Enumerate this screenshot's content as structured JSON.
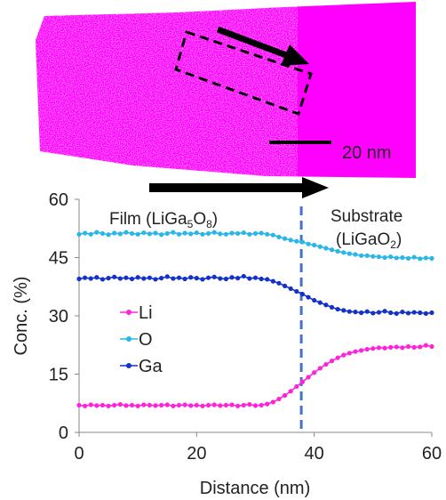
{
  "colors": {
    "atom_map": "#ff00ff",
    "li": "#ff22dd",
    "o": "#29b6e8",
    "ga": "#1432c8",
    "interface": "#4472c4",
    "arrow": "#000000"
  },
  "scale_bar": {
    "label": "20 nm"
  },
  "annotations": {
    "film_prefix": "Film (LiGa",
    "film_sub1": "5",
    "film_mid": "O",
    "film_sub2": "8",
    "film_suffix": ")",
    "substrate_line1": "Substrate",
    "substrate_prefix": "(LiGaO",
    "substrate_sub": "2",
    "substrate_suffix": ")"
  },
  "chart_data": {
    "type": "line",
    "xlabel": "Distance (nm)",
    "ylabel": "Conc. (%)",
    "xlim": [
      0,
      60
    ],
    "ylim": [
      0,
      60
    ],
    "xticks": [
      0,
      20,
      40,
      60
    ],
    "yticks": [
      0,
      15,
      30,
      45,
      60
    ],
    "grid": false,
    "legend_position": "left-middle",
    "interface_x": 37.8,
    "series": [
      {
        "name": "Li",
        "color": "#ff22dd",
        "x": [
          0,
          1,
          2,
          3,
          4,
          5,
          6,
          7,
          8,
          9,
          10,
          11,
          12,
          13,
          14,
          15,
          16,
          17,
          18,
          19,
          20,
          21,
          22,
          23,
          24,
          25,
          26,
          27,
          28,
          29,
          30,
          31,
          32,
          33,
          34,
          35,
          36,
          37,
          38,
          39,
          40,
          41,
          42,
          43,
          44,
          45,
          46,
          47,
          48,
          49,
          50,
          51,
          52,
          53,
          54,
          55,
          56,
          57,
          58,
          59,
          60
        ],
        "values": [
          7.0,
          6.8,
          7.1,
          6.9,
          7.0,
          6.8,
          7.0,
          7.2,
          6.9,
          7.0,
          6.8,
          7.1,
          7.0,
          6.9,
          7.0,
          7.1,
          6.8,
          7.0,
          7.1,
          6.9,
          7.0,
          6.8,
          7.0,
          7.1,
          6.9,
          7.0,
          7.1,
          6.8,
          7.0,
          7.2,
          6.9,
          7.0,
          7.3,
          7.8,
          8.6,
          9.5,
          10.6,
          11.8,
          13.0,
          14.2,
          15.4,
          16.5,
          17.5,
          18.4,
          19.2,
          19.9,
          20.4,
          20.8,
          21.1,
          21.4,
          21.6,
          21.8,
          21.7,
          21.9,
          22.0,
          21.8,
          22.1,
          21.9,
          22.0,
          22.4,
          22.1
        ]
      },
      {
        "name": "O",
        "color": "#29b6e8",
        "x": [
          0,
          1,
          2,
          3,
          4,
          5,
          6,
          7,
          8,
          9,
          10,
          11,
          12,
          13,
          14,
          15,
          16,
          17,
          18,
          19,
          20,
          21,
          22,
          23,
          24,
          25,
          26,
          27,
          28,
          29,
          30,
          31,
          32,
          33,
          34,
          35,
          36,
          37,
          38,
          39,
          40,
          41,
          42,
          43,
          44,
          45,
          46,
          47,
          48,
          49,
          50,
          51,
          52,
          53,
          54,
          55,
          56,
          57,
          58,
          59,
          60
        ],
        "values": [
          51.0,
          51.3,
          51.0,
          51.5,
          51.2,
          50.9,
          51.3,
          51.1,
          51.5,
          51.2,
          51.0,
          51.4,
          51.1,
          51.3,
          50.9,
          51.2,
          51.5,
          51.0,
          51.3,
          51.1,
          51.4,
          51.0,
          51.2,
          51.5,
          51.1,
          51.0,
          51.3,
          51.2,
          51.4,
          51.0,
          51.2,
          51.3,
          51.0,
          50.8,
          50.3,
          49.9,
          49.5,
          49.2,
          49.0,
          48.5,
          48.2,
          47.8,
          47.4,
          47.0,
          46.6,
          46.3,
          46.0,
          45.8,
          45.5,
          45.5,
          45.3,
          45.2,
          45.0,
          45.2,
          44.9,
          45.0,
          44.8,
          45.1,
          44.7,
          44.9,
          44.8
        ]
      },
      {
        "name": "Ga",
        "color": "#1432c8",
        "x": [
          0,
          1,
          2,
          3,
          4,
          5,
          6,
          7,
          8,
          9,
          10,
          11,
          12,
          13,
          14,
          15,
          16,
          17,
          18,
          19,
          20,
          21,
          22,
          23,
          24,
          25,
          26,
          27,
          28,
          29,
          30,
          31,
          32,
          33,
          34,
          35,
          36,
          37,
          38,
          39,
          40,
          41,
          42,
          43,
          44,
          45,
          46,
          47,
          48,
          49,
          50,
          51,
          52,
          53,
          54,
          55,
          56,
          57,
          58,
          59,
          60
        ],
        "values": [
          39.5,
          39.8,
          39.6,
          39.9,
          39.4,
          39.7,
          40.0,
          39.6,
          39.8,
          39.5,
          39.9,
          39.6,
          39.8,
          39.4,
          39.7,
          40.1,
          39.6,
          39.8,
          39.5,
          39.9,
          39.7,
          39.4,
          39.8,
          40.0,
          39.6,
          39.5,
          39.9,
          39.7,
          40.2,
          39.6,
          39.8,
          39.5,
          39.4,
          38.9,
          38.4,
          37.7,
          37.0,
          36.3,
          35.6,
          34.8,
          34.0,
          33.4,
          32.8,
          32.2,
          31.7,
          31.4,
          31.1,
          31.0,
          30.8,
          31.1,
          30.7,
          30.9,
          31.2,
          30.8,
          30.6,
          31.0,
          30.7,
          30.9,
          30.8,
          30.6,
          30.8
        ]
      }
    ]
  }
}
